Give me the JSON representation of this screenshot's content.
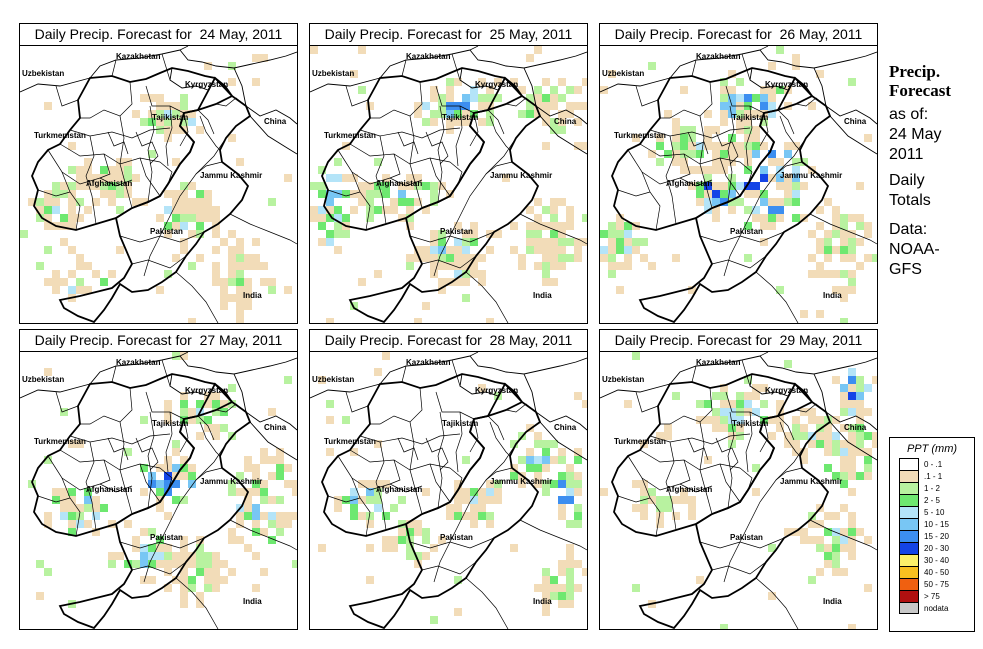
{
  "panels": [
    {
      "title": "Daily Precip. Forecast for  24 May, 2011"
    },
    {
      "title": "Daily Precip. Forecast for  25 May, 2011"
    },
    {
      "title": "Daily Precip. Forecast for  26 May, 2011"
    },
    {
      "title": "Daily Precip. Forecast for  27 May, 2011"
    },
    {
      "title": "Daily Precip. Forecast for  28 May, 2011"
    },
    {
      "title": "Daily Precip. Forecast for  29 May, 2011"
    }
  ],
  "map_labels": {
    "kazakhstan": "Kazakhstan",
    "uzbekistan": "Uzbekistan",
    "kyrgyzstan": "Kyrgyzstan",
    "tajikistan": "Tajikistan",
    "china": "China",
    "turkmenistan": "Turkmenistan",
    "jammu_kashmir": "Jammu Kashmir",
    "afghanistan": "Afghanistan",
    "pakistan": "Pakistan",
    "india": "India"
  },
  "side": {
    "title_line1": "Precip.",
    "title_line2": "Forecast",
    "asof": "as of:",
    "date_line1": "24 May",
    "date_line2": "2011",
    "totals_line1": "Daily",
    "totals_line2": "Totals",
    "data_line1": "Data:",
    "data_line2": "NOAA-",
    "data_line3": "GFS"
  },
  "legend": {
    "title": "PPT (mm)",
    "items": [
      {
        "label": "0 - .1",
        "color": "#ffffff"
      },
      {
        "label": ".1 - 1",
        "color": "#f2dcb8"
      },
      {
        "label": "1 - 2",
        "color": "#b8f2a0"
      },
      {
        "label": "2 - 5",
        "color": "#6ee870"
      },
      {
        "label": "5 - 10",
        "color": "#b4e4f8"
      },
      {
        "label": "10 - 15",
        "color": "#78c6f4"
      },
      {
        "label": "15 - 20",
        "color": "#3c8ef0"
      },
      {
        "label": "20 - 30",
        "color": "#1444e6"
      },
      {
        "label": "30 - 40",
        "color": "#fcf06a"
      },
      {
        "label": "40 - 50",
        "color": "#f8c020"
      },
      {
        "label": "50 - 75",
        "color": "#f06010"
      },
      {
        "label": "> 75",
        "color": "#b01010"
      },
      {
        "label": "nodata",
        "color": "#c8c8c8"
      }
    ]
  }
}
